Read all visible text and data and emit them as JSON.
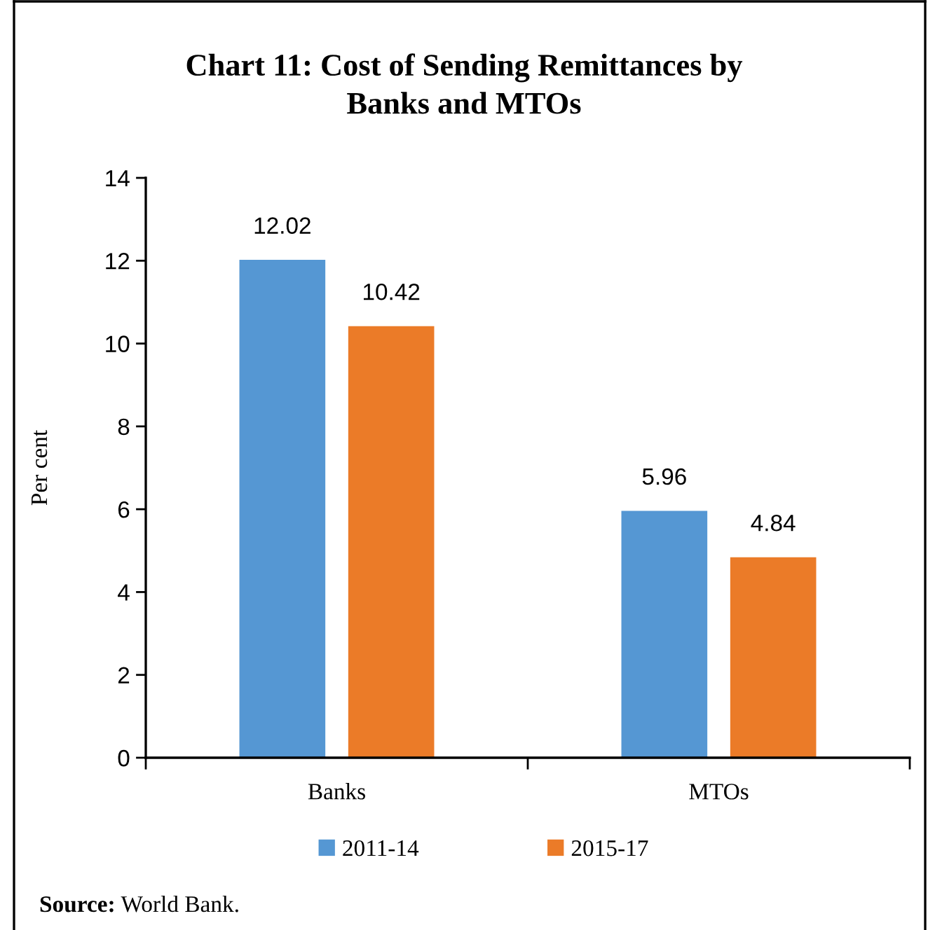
{
  "chart_data": {
    "type": "bar",
    "title": "Chart 11: Cost of Sending Remittances by Banks and MTOs",
    "ylabel": "Per cent",
    "categories": [
      "Banks",
      "MTOs"
    ],
    "series": [
      {
        "name": "2011-14",
        "color": "#5597d3",
        "values": [
          12.02,
          5.96
        ]
      },
      {
        "name": "2015-17",
        "color": "#eb7b28",
        "values": [
          10.42,
          4.84
        ]
      }
    ],
    "ylim": [
      0,
      14
    ],
    "yticks": [
      0,
      2,
      4,
      6,
      8,
      10,
      12,
      14
    ],
    "data_labels": true,
    "legend": "bottom",
    "annotations": [
      "Source: World Bank."
    ]
  }
}
